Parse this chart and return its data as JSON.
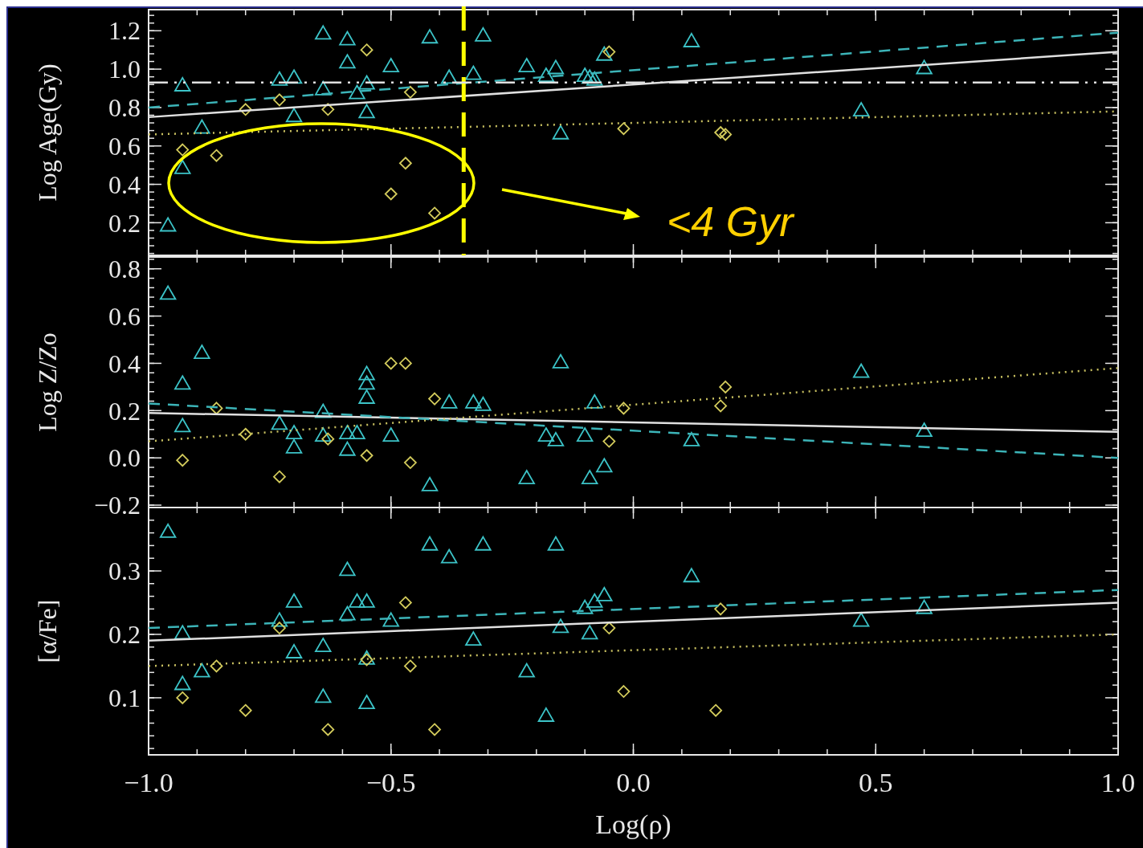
{
  "chart_data": [
    {
      "type": "scatter",
      "ylabel": "Log Age(Gy)",
      "xlim": [
        -1,
        1
      ],
      "ylim": [
        0.03,
        1.31
      ],
      "tick_labels": "y",
      "xticks": [
        -1,
        -0.5,
        0,
        0.5,
        1
      ],
      "yticks": [
        {
          "value": 0.2,
          "label": "0.2"
        },
        {
          "value": 0.4,
          "label": "0.4"
        },
        {
          "value": 0.6,
          "label": "0.6"
        },
        {
          "value": 0.8,
          "label": "0.8"
        },
        {
          "value": 1,
          "label": "1.0"
        },
        {
          "value": 1.2,
          "label": "1.2"
        }
      ],
      "series": [
        {
          "type": "scatter",
          "marker": "triangle",
          "color": "#3cc4c8",
          "x": [
            -0.96,
            -0.93,
            -0.93,
            -0.89,
            -0.73,
            -0.7,
            -0.7,
            -0.64,
            -0.64,
            -0.59,
            -0.59,
            -0.57,
            -0.55,
            -0.55,
            -0.5,
            -0.42,
            -0.38,
            -0.33,
            -0.31,
            -0.22,
            -0.18,
            -0.16,
            -0.15,
            -0.1,
            -0.09,
            -0.08,
            -0.06,
            0.12,
            0.47,
            0.6
          ],
          "values": [
            0.18,
            0.91,
            0.48,
            0.69,
            0.94,
            0.95,
            0.75,
            1.18,
            0.89,
            1.15,
            1.03,
            0.87,
            0.92,
            0.77,
            1.01,
            1.16,
            0.95,
            0.97,
            1.17,
            1.01,
            0.96,
            1.0,
            0.66,
            0.96,
            0.95,
            0.94,
            1.07,
            1.14,
            0.78,
            1.0
          ]
        },
        {
          "type": "scatter",
          "marker": "diamond",
          "color": "#d4cc5c",
          "x": [
            -0.93,
            -0.86,
            -0.8,
            -0.73,
            -0.63,
            -0.55,
            -0.5,
            -0.47,
            -0.46,
            -0.41,
            -0.05,
            -0.02,
            0.18,
            0.19
          ],
          "values": [
            0.58,
            0.55,
            0.79,
            0.84,
            0.79,
            1.1,
            0.35,
            0.51,
            0.88,
            0.25,
            1.09,
            0.69,
            0.67,
            0.66
          ]
        },
        {
          "type": "line",
          "line_style": "solid",
          "color": "#e0e0e0",
          "x": [
            -1,
            1
          ],
          "values": [
            0.75,
            1.09
          ]
        },
        {
          "type": "line",
          "line_style": "dashed",
          "color": "#3cb4b8",
          "x": [
            -1,
            1
          ],
          "values": [
            0.8,
            1.19
          ]
        },
        {
          "type": "line",
          "line_style": "dotted",
          "color": "#c8c060",
          "x": [
            -1,
            1
          ],
          "values": [
            0.66,
            0.78
          ]
        }
      ],
      "ref_lines": [
        {
          "axis": "x",
          "value": -0.35,
          "color": "#ffff00",
          "line_style": "dashed"
        },
        {
          "axis": "y",
          "value": 0.93,
          "color": "#e0e0e0",
          "line_style": "dashdot"
        }
      ],
      "annotations": [
        "<4 Gyr"
      ]
    },
    {
      "type": "scatter",
      "ylabel": "Log Z/Zo",
      "xlim": [
        -1,
        1
      ],
      "ylim": [
        -0.21,
        0.85
      ],
      "tick_labels": "y",
      "xticks": [
        -1,
        -0.5,
        0,
        0.5,
        1
      ],
      "yticks": [
        {
          "value": -0.2,
          "label": "−0.2"
        },
        {
          "value": 0,
          "label": "0.0"
        },
        0.2,
        0.4,
        0.6,
        0.8
      ],
      "series": [
        {
          "type": "scatter",
          "marker": "triangle",
          "color": "#3cc4c8",
          "x": [
            -0.96,
            -0.93,
            -0.93,
            -0.89,
            -0.73,
            -0.7,
            -0.7,
            -0.64,
            -0.64,
            -0.59,
            -0.59,
            -0.57,
            -0.55,
            -0.55,
            -0.55,
            -0.5,
            -0.42,
            -0.38,
            -0.33,
            -0.31,
            -0.22,
            -0.18,
            -0.16,
            -0.15,
            -0.1,
            -0.09,
            -0.08,
            -0.06,
            0.12,
            0.47,
            0.6
          ],
          "values": [
            0.69,
            0.31,
            0.13,
            0.44,
            0.14,
            0.1,
            0.04,
            0.19,
            0.09,
            0.1,
            0.03,
            0.1,
            0.35,
            0.31,
            0.25,
            0.09,
            -0.12,
            0.23,
            0.23,
            0.22,
            -0.09,
            0.09,
            0.07,
            0.4,
            0.09,
            -0.09,
            0.23,
            -0.04,
            0.07,
            0.36,
            0.11
          ]
        },
        {
          "type": "scatter",
          "marker": "diamond",
          "color": "#d4cc5c",
          "x": [
            -0.93,
            -0.86,
            -0.8,
            -0.73,
            -0.63,
            -0.55,
            -0.5,
            -0.47,
            -0.46,
            -0.41,
            -0.05,
            -0.02,
            0.18,
            0.19
          ],
          "values": [
            -0.01,
            0.21,
            0.1,
            -0.08,
            0.08,
            0.01,
            0.4,
            0.4,
            -0.02,
            0.25,
            0.07,
            0.21,
            0.22,
            0.3
          ]
        },
        {
          "type": "line",
          "line_style": "solid",
          "color": "#e0e0e0",
          "x": [
            -1,
            1
          ],
          "values": [
            0.19,
            0.11
          ]
        },
        {
          "type": "line",
          "line_style": "dashed",
          "color": "#3cb4b8",
          "x": [
            -1,
            1
          ],
          "values": [
            0.23,
            0.0
          ]
        },
        {
          "type": "line",
          "line_style": "dotted",
          "color": "#c8c060",
          "x": [
            -1,
            1
          ],
          "values": [
            0.07,
            0.38
          ]
        }
      ]
    },
    {
      "type": "scatter",
      "ylabel": "[α/Fe]",
      "xlabel": "Log(ρ)",
      "xlim": [
        -1,
        1
      ],
      "ylim": [
        0.01,
        0.4
      ],
      "xticks": [
        {
          "value": -1,
          "label": "−1.0"
        },
        {
          "value": -0.5,
          "label": "−0.5"
        },
        {
          "value": 0,
          "label": "0.0"
        },
        0.5,
        {
          "value": 1,
          "label": "1.0"
        }
      ],
      "yticks": [
        0.1,
        0.2,
        0.3
      ],
      "series": [
        {
          "type": "scatter",
          "marker": "triangle",
          "color": "#3cc4c8",
          "x": [
            -0.96,
            -0.93,
            -0.93,
            -0.89,
            -0.73,
            -0.7,
            -0.7,
            -0.64,
            -0.64,
            -0.59,
            -0.59,
            -0.57,
            -0.55,
            -0.55,
            -0.55,
            -0.5,
            -0.42,
            -0.38,
            -0.33,
            -0.31,
            -0.22,
            -0.18,
            -0.16,
            -0.15,
            -0.1,
            -0.09,
            -0.08,
            -0.06,
            0.12,
            0.47,
            0.6
          ],
          "values": [
            0.36,
            0.2,
            0.12,
            0.14,
            0.22,
            0.25,
            0.17,
            0.18,
            0.1,
            0.3,
            0.23,
            0.25,
            0.25,
            0.09,
            0.16,
            0.22,
            0.34,
            0.32,
            0.19,
            0.34,
            0.14,
            0.07,
            0.34,
            0.21,
            0.24,
            0.2,
            0.25,
            0.26,
            0.29,
            0.22,
            0.24
          ]
        },
        {
          "type": "scatter",
          "marker": "diamond",
          "color": "#d4cc5c",
          "x": [
            -0.93,
            -0.86,
            -0.8,
            -0.73,
            -0.63,
            -0.55,
            -0.47,
            -0.46,
            -0.41,
            -0.05,
            -0.02,
            0.17,
            0.18
          ],
          "values": [
            0.1,
            0.15,
            0.08,
            0.21,
            0.05,
            0.16,
            0.25,
            0.15,
            0.05,
            0.21,
            0.11,
            0.08,
            0.24
          ]
        },
        {
          "type": "line",
          "line_style": "solid",
          "color": "#e0e0e0",
          "x": [
            -1,
            1
          ],
          "values": [
            0.19,
            0.25
          ]
        },
        {
          "type": "line",
          "line_style": "dashed",
          "color": "#3cb4b8",
          "x": [
            -1,
            1
          ],
          "values": [
            0.21,
            0.27
          ]
        },
        {
          "type": "line",
          "line_style": "dotted",
          "color": "#c8c060",
          "x": [
            -1,
            1
          ],
          "values": [
            0.15,
            0.2
          ]
        }
      ]
    }
  ]
}
